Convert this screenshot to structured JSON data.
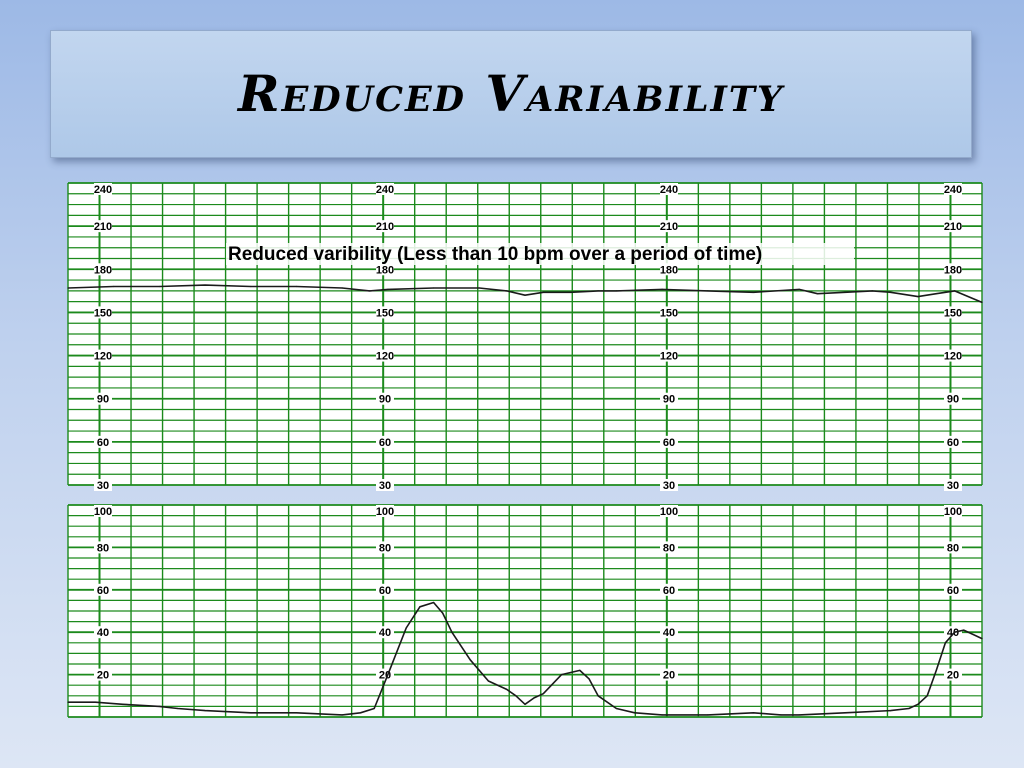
{
  "slide": {
    "title": "Reduced Variability"
  },
  "colors": {
    "grid": "#1c8a1c",
    "paper": "#ffffff",
    "trace": "#1a1a1a"
  },
  "chart_data": [
    {
      "type": "line",
      "name": "fetal-heart-rate",
      "title": "Reduced varibility (Less than 10 bpm over a period of time)",
      "ylim": [
        30,
        240
      ],
      "yticks": [
        30,
        60,
        90,
        120,
        150,
        180,
        210,
        240
      ],
      "grid": true,
      "label_columns": 4,
      "xlim": [
        0,
        100
      ],
      "x": [
        0,
        5,
        10,
        15,
        20,
        25,
        30,
        33,
        35,
        40,
        45,
        48,
        50,
        52,
        55,
        58,
        60,
        65,
        70,
        75,
        80,
        82,
        85,
        88,
        90,
        93,
        95,
        97,
        100
      ],
      "y": [
        167,
        168,
        168,
        169,
        168,
        168,
        167,
        165,
        166,
        167,
        167,
        165,
        162,
        164,
        164,
        165,
        165,
        166,
        165,
        164,
        166,
        163,
        164,
        165,
        164,
        161,
        163,
        165,
        157
      ]
    },
    {
      "type": "line",
      "name": "uterine-contractions",
      "ylim": [
        0,
        100
      ],
      "yticks": [
        20,
        40,
        60,
        80,
        100
      ],
      "grid": true,
      "label_columns": 4,
      "xlim": [
        0,
        100
      ],
      "x": [
        0,
        3,
        6,
        10,
        12,
        15,
        20,
        25,
        30,
        32,
        33.5,
        35,
        37,
        38.5,
        40,
        41,
        42,
        44,
        46,
        48,
        49,
        50,
        51,
        52,
        54,
        56,
        57,
        58,
        60,
        62,
        65,
        70,
        75,
        78,
        80,
        85,
        90,
        92,
        93,
        94,
        95,
        96,
        97,
        98,
        100
      ],
      "y": [
        7,
        7,
        6,
        5,
        4,
        3,
        2,
        2,
        1,
        2,
        4,
        20,
        42,
        52,
        54,
        49,
        40,
        27,
        17,
        13,
        10,
        6,
        9,
        11,
        20,
        22,
        18,
        10,
        4,
        2,
        1,
        1,
        2,
        1,
        1,
        2,
        3,
        4,
        6,
        10,
        22,
        35,
        40,
        41,
        37
      ]
    }
  ]
}
